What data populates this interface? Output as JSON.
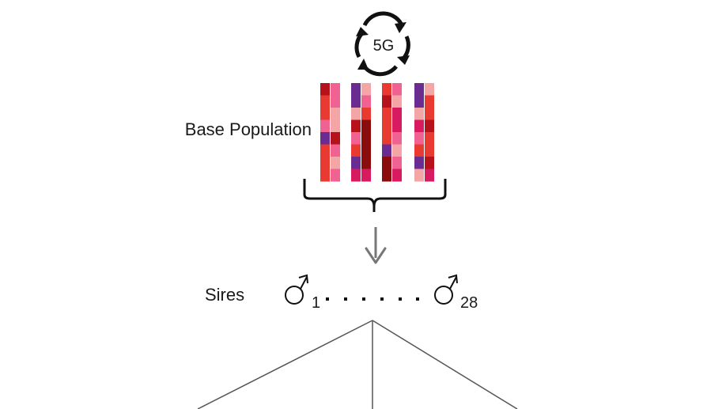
{
  "cycle": {
    "label": "5G",
    "icon": "cycle-arrows-icon"
  },
  "base_population": {
    "label": "Base Population",
    "chromosome_palette": [
      "#e83a30",
      "#f06292",
      "#b5121b",
      "#f4a6a6",
      "#6a2c91",
      "#8b0c0c",
      "#d81b60"
    ],
    "chromosomes": [
      [
        "#b5121b",
        "#e83a30",
        "#e83a30",
        "#f06292",
        "#6a2c91",
        "#e83a30",
        "#e83a30",
        "#e83a30"
      ],
      [
        "#f06292",
        "#f06292",
        "#f4a6a6",
        "#f4a6a6",
        "#b5121b",
        "#f06292",
        "#f4a6a6",
        "#f06292"
      ],
      [
        "#6a2c91",
        "#6a2c91",
        "#f4a6a6",
        "#b5121b",
        "#f06292",
        "#e83a30",
        "#6a2c91",
        "#d81b60"
      ],
      [
        "#f4a6a6",
        "#f06292",
        "#e83a30",
        "#8b0c0c",
        "#8b0c0c",
        "#8b0c0c",
        "#8b0c0c",
        "#d81b60"
      ],
      [
        "#e83a30",
        "#b5121b",
        "#e83a30",
        "#e83a30",
        "#e83a30",
        "#6a2c91",
        "#8b0c0c",
        "#8b0c0c"
      ],
      [
        "#f06292",
        "#f4a6a6",
        "#d81b60",
        "#d81b60",
        "#f06292",
        "#f4a6a6",
        "#f06292",
        "#d81b60"
      ],
      [
        "#6a2c91",
        "#6a2c91",
        "#f4a6a6",
        "#d81b60",
        "#f06292",
        "#e83a30",
        "#6a2c91",
        "#f4a6a6"
      ],
      [
        "#f4a6a6",
        "#e83a30",
        "#e83a30",
        "#b5121b",
        "#e83a30",
        "#e83a30",
        "#b5121b",
        "#d81b60"
      ]
    ]
  },
  "sires": {
    "label": "Sires",
    "first_index": "1",
    "last_index": "28",
    "icon": "male-symbol-icon"
  },
  "colors": {
    "arrow": "#777777",
    "lines": "#555555",
    "text": "#1a1a1a"
  }
}
